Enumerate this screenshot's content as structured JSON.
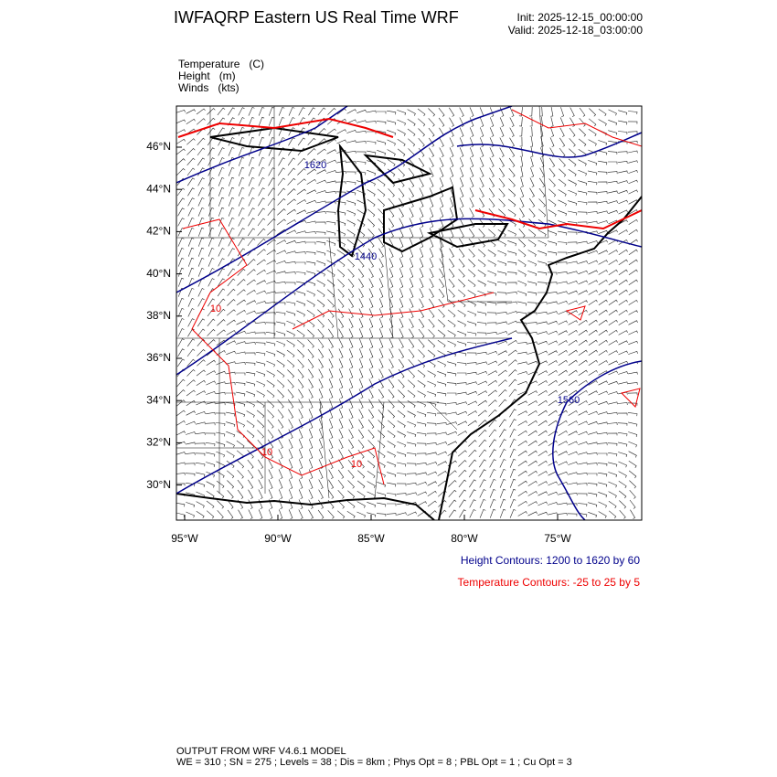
{
  "header": {
    "title": "IWFAQRP Eastern US Real Time WRF",
    "init": "Init: 2025-12-15_00:00:00",
    "valid": "Valid: 2025-12-18_03:00:00"
  },
  "fields": [
    "Temperature   (C)",
    "Height   (m)",
    "Winds   (kts)"
  ],
  "map": {
    "xticks": [
      {
        "value": -95,
        "label": "95°W"
      },
      {
        "value": -90,
        "label": "90°W"
      },
      {
        "value": -85,
        "label": "85°W"
      },
      {
        "value": -80,
        "label": "80°W"
      },
      {
        "value": -75,
        "label": "75°W"
      }
    ],
    "yticks": [
      {
        "value": 46,
        "label": "46°N"
      },
      {
        "value": 44,
        "label": "44°N"
      },
      {
        "value": 42,
        "label": "42°N"
      },
      {
        "value": 40,
        "label": "40°N"
      },
      {
        "value": 38,
        "label": "38°N"
      },
      {
        "value": 36,
        "label": "36°N"
      },
      {
        "value": 34,
        "label": "34°N"
      },
      {
        "value": 32,
        "label": "32°N"
      },
      {
        "value": 30,
        "label": "30°N"
      }
    ],
    "height_contour_labels": [
      "1620",
      "1440",
      "1560"
    ],
    "temperature_contour_labels": [
      "10",
      "10",
      "10"
    ]
  },
  "contour_info": {
    "height": "Height Contours: 1200 to 1620 by 60",
    "temperature": "Temperature Contours: -25 to 25 by 5"
  },
  "footer": [
    "OUTPUT FROM WRF V4.6.1 MODEL",
    "WE = 310 ; SN = 275 ; Levels = 38 ; Dis = 8km ; Phys Opt = 8 ; PBL Opt = 1 ; Cu Opt = 3"
  ]
}
